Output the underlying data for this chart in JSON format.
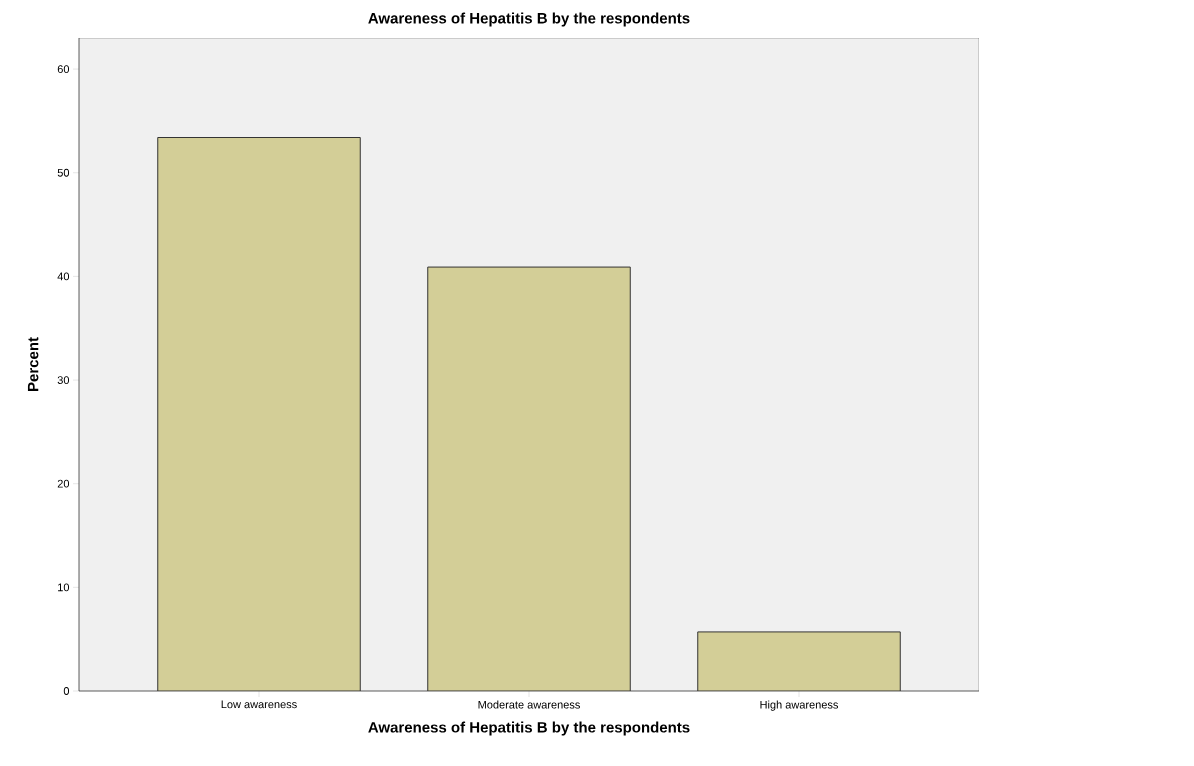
{
  "chart_data": {
    "type": "bar",
    "title": "Awareness of Hepatitis B by the respondents",
    "xlabel": "Awareness of Hepatitis B by the respondents",
    "ylabel": "Percent",
    "categories": [
      "Low awareness",
      "Moderate awareness",
      "High awareness"
    ],
    "values": [
      53.4,
      40.9,
      5.7
    ],
    "color": "#d3ce97",
    "ylim": [
      0,
      63
    ],
    "yticks": [
      0,
      10,
      20,
      30,
      40,
      50,
      60
    ],
    "grid": false
  }
}
